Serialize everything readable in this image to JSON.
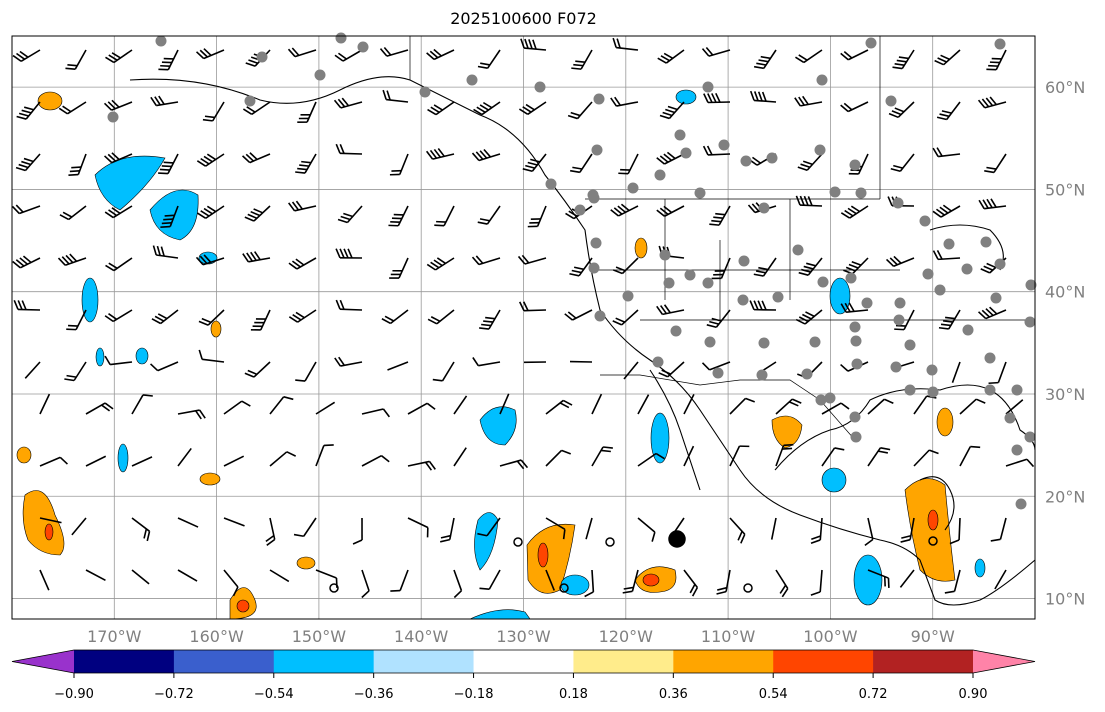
{
  "title": "2025100600 F072",
  "map": {
    "extent": {
      "lon": [
        -180,
        -80
      ],
      "lat": [
        8,
        65
      ]
    },
    "lon_ticks": [
      "170°W",
      "160°W",
      "150°W",
      "140°W",
      "130°W",
      "120°W",
      "110°W",
      "100°W",
      "90°W"
    ],
    "lat_ticks": [
      "60°N",
      "50°N",
      "40°N",
      "30°N",
      "20°N",
      "10°N"
    ]
  },
  "colorbar": {
    "colors": [
      "#9932CC",
      "#000080",
      "#3A5FCD",
      "#00BFFF",
      "#B0E2FF",
      "#FFFFFF",
      "#FFEC8B",
      "#FFA500",
      "#FF4500",
      "#B22222",
      "#FF83A8"
    ],
    "labels": [
      "−0.90",
      "−0.72",
      "−0.54",
      "−0.36",
      "−0.18",
      "0.18",
      "0.36",
      "0.54",
      "0.72",
      "0.90"
    ]
  }
}
